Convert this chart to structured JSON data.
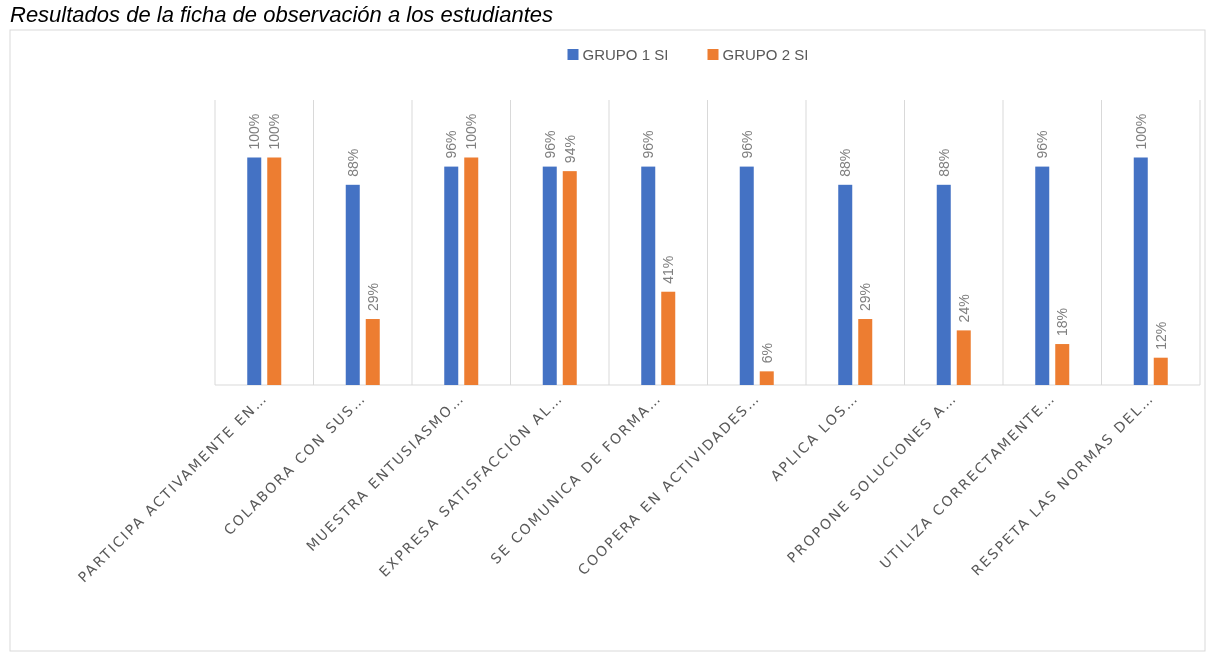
{
  "chart_data": {
    "type": "bar",
    "title": "Resultados de la ficha de observación a los estudiantes",
    "categories": [
      "PARTICIPA ACTIVAMENTE EN…",
      "COLABORA CON SUS…",
      "MUESTRA ENTUSIASMO…",
      "EXPRESA SATISFACCIÓN AL…",
      "SE COMUNICA DE FORMA…",
      "COOPERA EN ACTIVIDADES…",
      "APLICA LOS…",
      "PROPONE SOLUCIONES A…",
      "UTILIZA CORRECTAMENTE…",
      "RESPETA LAS NORMAS DEL…"
    ],
    "series": [
      {
        "name": "GRUPO 1 SI",
        "color": "#4472c4",
        "values": [
          100,
          88,
          96,
          96,
          96,
          96,
          88,
          88,
          96,
          100
        ],
        "value_labels": [
          "100%",
          "88%",
          "96%",
          "96%",
          "96%",
          "96%",
          "88%",
          "88%",
          "96%",
          "100%"
        ]
      },
      {
        "name": "GRUPO 2 SI",
        "color": "#ed7d31",
        "values": [
          100,
          29,
          100,
          94,
          41,
          6,
          29,
          24,
          18,
          12
        ],
        "value_labels": [
          "100%",
          "29%",
          "100%",
          "94%",
          "41%",
          "6%",
          "29%",
          "24%",
          "18%",
          "12%"
        ]
      }
    ],
    "grid": "x",
    "legend": "top"
  }
}
